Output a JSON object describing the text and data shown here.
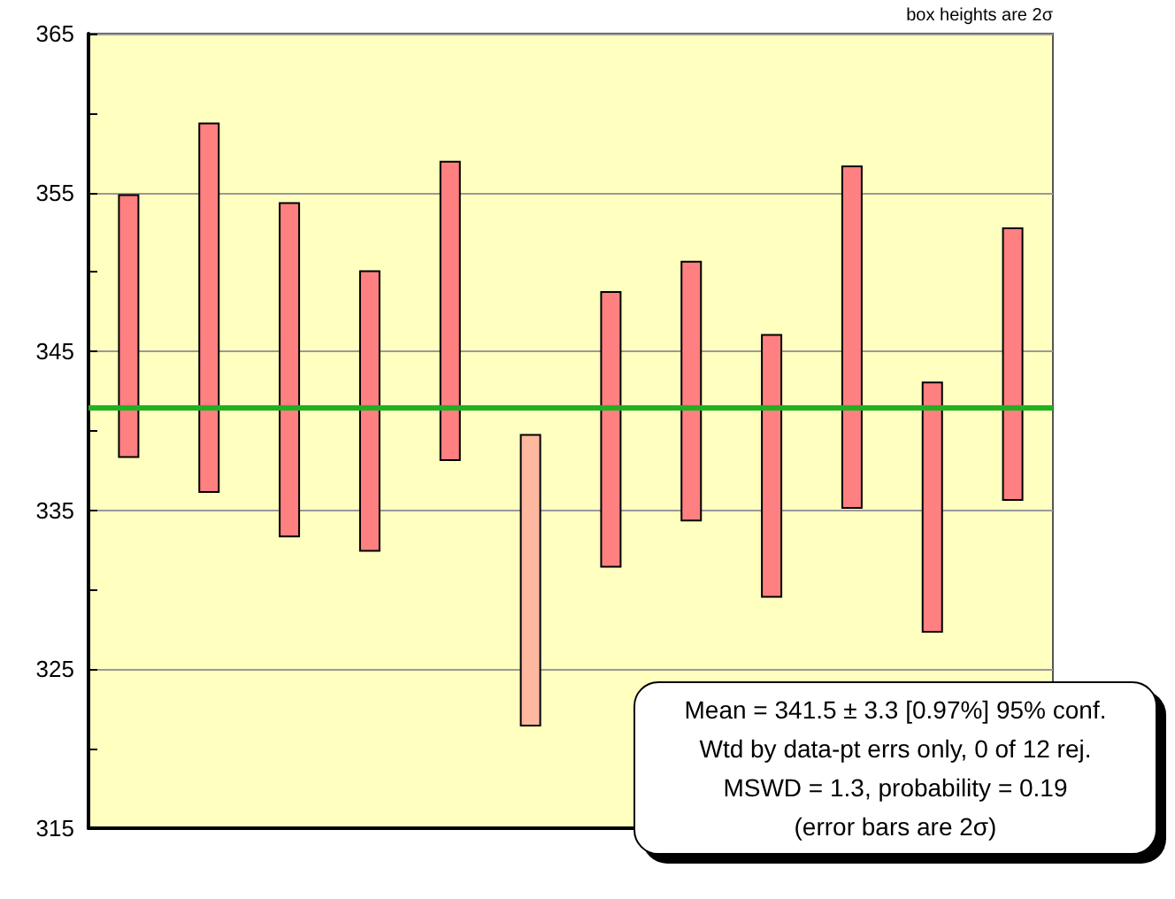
{
  "chart_data": {
    "type": "bar",
    "categories": [
      null,
      null,
      null,
      null,
      null,
      null,
      null,
      null,
      null,
      null,
      null,
      null
    ],
    "base": [
      338.3,
      336.1,
      333.3,
      332.4,
      338.1,
      321.4,
      331.4,
      334.3,
      329.5,
      335.1,
      327.3,
      335.6
    ],
    "values": [
      16.6,
      23.3,
      21.1,
      17.7,
      18.9,
      18.4,
      17.4,
      16.4,
      16.6,
      21.6,
      15.8,
      17.2
    ],
    "colors": [
      "#ff8080",
      "#ff8080",
      "#ff8080",
      "#ff8080",
      "#ff8080",
      "#ffb8a0",
      "#ff8080",
      "#ff8080",
      "#ff8080",
      "#ff8080",
      "#ff8080",
      "#ff8080"
    ],
    "ylim": [
      315,
      365
    ],
    "yticks": [
      315,
      {
        "value": 320,
        "label": null
      },
      325,
      {
        "value": 330,
        "label": null
      },
      335,
      {
        "value": 340,
        "label": null
      },
      345,
      {
        "value": 350,
        "label": null
      },
      355,
      {
        "value": 360,
        "label": null
      },
      365
    ],
    "grid": "y",
    "ref_lines": [
      {
        "axis": "y",
        "value": 341.5,
        "color": "#22b022"
      }
    ],
    "annotations": [
      "box heights are 2σ",
      "Mean = 341.5 ± 3.3  [0.97%]  95% conf.",
      "Wtd by data-pt errs only, 0 of 12 rej.",
      "MSWD = 1.3, probability = 0.19",
      "(error bars are 2σ)"
    ]
  }
}
